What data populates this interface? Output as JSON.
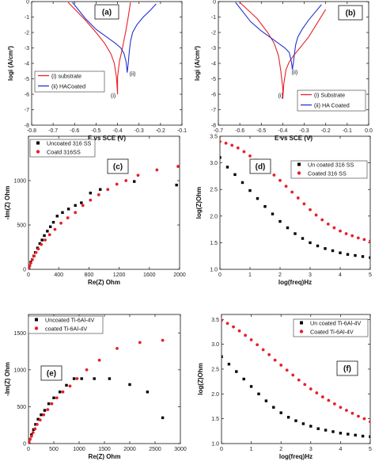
{
  "chart_data": [
    {
      "panel": "(a)",
      "type": "line",
      "xlabel": "E vs SCE (V)",
      "ylabel": "logi (A/cm²)",
      "xlim": [
        -0.8,
        -0.1
      ],
      "ylim": [
        -8,
        0
      ],
      "xticks": [
        "-0.8",
        "-0.7",
        "-0.6",
        "-0.5",
        "-0.4",
        "-0.3",
        "-0.2",
        "-0.1"
      ],
      "yticks": [
        "0",
        "-1",
        "-2",
        "-3",
        "-4",
        "-5",
        "-6",
        "-7",
        "-8"
      ],
      "legend_loc": "lower-left",
      "annotations": [
        {
          "text": "(i)",
          "x": -0.42,
          "y": -6.2
        },
        {
          "text": "(ii)",
          "x": -0.33,
          "y": -4.8
        }
      ],
      "series": [
        {
          "name": "(i) substrate",
          "color": "#e8202a",
          "x": [
            -0.63,
            -0.55,
            -0.5,
            -0.46,
            -0.43,
            -0.415,
            -0.405,
            -0.4,
            -0.4,
            -0.395,
            -0.39,
            -0.38,
            -0.37,
            -0.36,
            -0.35,
            -0.34
          ],
          "y": [
            -0.05,
            -1.2,
            -2.0,
            -2.7,
            -3.4,
            -4.0,
            -4.9,
            -6.0,
            -4.9,
            -4.3,
            -3.8,
            -3.2,
            -2.5,
            -1.8,
            -1.0,
            -0.05
          ]
        },
        {
          "name": "(ii) HACoated",
          "color": "#2233cc",
          "x": [
            -0.61,
            -0.55,
            -0.5,
            -0.45,
            -0.41,
            -0.385,
            -0.37,
            -0.36,
            -0.355,
            -0.35,
            -0.345,
            -0.34,
            -0.33,
            -0.31,
            -0.28,
            -0.25,
            -0.22
          ],
          "y": [
            -0.05,
            -1.1,
            -1.8,
            -2.3,
            -2.7,
            -3.0,
            -3.35,
            -3.9,
            -4.6,
            -4.0,
            -3.2,
            -2.6,
            -2.0,
            -1.5,
            -1.0,
            -0.6,
            -0.15
          ]
        }
      ]
    },
    {
      "panel": "(b)",
      "type": "line",
      "xlabel": "E vs SCE (V)",
      "ylabel": "logi (A/cm²)",
      "xlim": [
        -0.7,
        0.0
      ],
      "ylim": [
        -8,
        0
      ],
      "xticks": [
        "-0.7",
        "-0.6",
        "-0.5",
        "-0.4",
        "-0.3",
        "-0.2",
        "-0.1",
        "0.0"
      ],
      "yticks": [
        "0",
        "-1",
        "-2",
        "-3",
        "-4",
        "-5",
        "-6",
        "-7",
        "-8"
      ],
      "legend_loc": "lower-right",
      "annotations": [
        {
          "text": "(i)",
          "x": -0.41,
          "y": -6.2
        },
        {
          "text": "(ii)",
          "x": -0.345,
          "y": -4.7
        }
      ],
      "series": [
        {
          "name": "(i) Substrate",
          "color": "#e8202a",
          "x": [
            -0.6,
            -0.52,
            -0.47,
            -0.44,
            -0.42,
            -0.41,
            -0.4,
            -0.4,
            -0.395,
            -0.385,
            -0.37,
            -0.35,
            -0.32,
            -0.28,
            -0.24,
            -0.2
          ],
          "y": [
            -0.05,
            -1.1,
            -2.0,
            -2.7,
            -3.5,
            -4.4,
            -5.6,
            -6.3,
            -5.3,
            -4.4,
            -3.9,
            -3.5,
            -3.0,
            -2.3,
            -1.4,
            -0.5
          ]
        },
        {
          "name": "(ii) HA Coated",
          "color": "#2233cc",
          "x": [
            -0.62,
            -0.55,
            -0.5,
            -0.45,
            -0.42,
            -0.39,
            -0.37,
            -0.36,
            -0.355,
            -0.35,
            -0.345,
            -0.34,
            -0.33,
            -0.31,
            -0.28,
            -0.25,
            -0.22
          ],
          "y": [
            -0.05,
            -1.3,
            -1.9,
            -2.4,
            -2.7,
            -3.0,
            -3.3,
            -3.9,
            -4.4,
            -3.9,
            -3.3,
            -2.8,
            -2.3,
            -1.8,
            -1.2,
            -0.7,
            -0.2
          ]
        }
      ]
    },
    {
      "panel": "(c)",
      "type": "scatter",
      "xlabel": "Re(Z) Ohm",
      "ylabel": "-Im(Z) Ohm",
      "xlim": [
        0,
        2000
      ],
      "ylim": [
        0,
        1500
      ],
      "xticks": [
        "0",
        "400",
        "800",
        "1200",
        "1600",
        "2000"
      ],
      "yticks": [
        "0",
        "500",
        "1000"
      ],
      "legend_loc": "top-left",
      "series": [
        {
          "name": "Uncoated 316 SS",
          "color": "#000000",
          "marker": "square",
          "x": [
            5,
            15,
            30,
            50,
            70,
            90,
            120,
            150,
            180,
            210,
            250,
            290,
            330,
            380,
            450,
            530,
            620,
            700,
            820,
            950,
            1400,
            1960
          ],
          "y": [
            10,
            40,
            80,
            110,
            150,
            190,
            240,
            290,
            330,
            380,
            430,
            480,
            530,
            600,
            640,
            680,
            720,
            750,
            860,
            900,
            990,
            950
          ]
        },
        {
          "name": "Coatd 316SS",
          "color": "#e8202a",
          "marker": "circle",
          "x": [
            5,
            15,
            30,
            50,
            75,
            100,
            130,
            170,
            220,
            280,
            350,
            430,
            520,
            620,
            720,
            820,
            930,
            1050,
            1170,
            1290,
            1450,
            1700,
            1980
          ],
          "y": [
            10,
            40,
            70,
            110,
            150,
            190,
            230,
            280,
            330,
            390,
            450,
            520,
            580,
            640,
            720,
            780,
            840,
            900,
            960,
            1000,
            1060,
            1120,
            1160
          ]
        }
      ]
    },
    {
      "panel": "(d)",
      "type": "scatter",
      "xlabel": "log(freq)Hz",
      "ylabel": "log(Z)Ohm",
      "xlim": [
        0,
        5
      ],
      "ylim": [
        1.0,
        3.5
      ],
      "xticks": [
        "0",
        "1",
        "2",
        "3",
        "4",
        "5"
      ],
      "yticks": [
        "1.0",
        "1.5",
        "2.0",
        "2.5",
        "3.0",
        "3.5"
      ],
      "legend_loc": "top-right",
      "series": [
        {
          "name": "Un coated 316 SS",
          "color": "#000000",
          "marker": "square",
          "x": [
            0.0,
            0.25,
            0.5,
            0.75,
            1.0,
            1.25,
            1.5,
            1.75,
            2.0,
            2.25,
            2.5,
            2.75,
            3.0,
            3.25,
            3.5,
            3.75,
            4.0,
            4.25,
            4.5,
            4.75,
            5.0
          ],
          "y": [
            3.1,
            2.92,
            2.78,
            2.63,
            2.48,
            2.33,
            2.18,
            2.04,
            1.9,
            1.78,
            1.67,
            1.58,
            1.5,
            1.44,
            1.39,
            1.35,
            1.31,
            1.28,
            1.26,
            1.24,
            1.22
          ]
        },
        {
          "name": "Coated 316 SS",
          "color": "#e8202a",
          "marker": "circle",
          "x": [
            0.0,
            0.2,
            0.4,
            0.6,
            0.8,
            1.0,
            1.2,
            1.4,
            1.6,
            1.8,
            2.0,
            2.2,
            2.4,
            2.6,
            2.8,
            3.0,
            3.2,
            3.4,
            3.6,
            3.8,
            4.0,
            4.2,
            4.4,
            4.6,
            4.8,
            5.0
          ],
          "y": [
            3.4,
            3.37,
            3.33,
            3.28,
            3.21,
            3.13,
            3.05,
            2.96,
            2.87,
            2.77,
            2.67,
            2.56,
            2.45,
            2.34,
            2.23,
            2.12,
            2.02,
            1.93,
            1.85,
            1.78,
            1.72,
            1.67,
            1.63,
            1.59,
            1.56,
            1.53
          ]
        }
      ]
    },
    {
      "panel": "(e)",
      "type": "scatter",
      "xlabel": "Re(Z) Ohm",
      "ylabel": "-Im(Z) Ohm",
      "xlim": [
        0,
        3000
      ],
      "ylim": [
        0,
        1750
      ],
      "xticks": [
        "0",
        "500",
        "1000",
        "1500",
        "2000",
        "2500",
        "3000"
      ],
      "yticks": [
        "0",
        "500",
        "1000",
        "1500"
      ],
      "legend_loc": "top-left",
      "series": [
        {
          "name": "Uncoated Ti-6Al-4V",
          "color": "#000000",
          "marker": "square",
          "x": [
            10,
            30,
            60,
            100,
            140,
            190,
            250,
            320,
            400,
            500,
            620,
            750,
            900,
            1050,
            1300,
            1600,
            2000,
            2350,
            2650
          ],
          "y": [
            20,
            60,
            120,
            190,
            260,
            330,
            390,
            450,
            540,
            620,
            700,
            790,
            880,
            880,
            880,
            880,
            800,
            700,
            350
          ]
        },
        {
          "name": "coated Ti-6Al-4V",
          "color": "#e8202a",
          "marker": "circle",
          "x": [
            10,
            30,
            60,
            90,
            130,
            170,
            230,
            300,
            380,
            460,
            560,
            680,
            820,
            960,
            1150,
            1400,
            1750,
            2200,
            2650
          ],
          "y": [
            20,
            60,
            100,
            150,
            200,
            260,
            320,
            390,
            460,
            540,
            620,
            700,
            780,
            880,
            1000,
            1130,
            1290,
            1370,
            1400
          ]
        }
      ]
    },
    {
      "panel": "(f)",
      "type": "scatter",
      "xlabel": "log(freq)Hz",
      "ylabel": "log(Z)Ohm",
      "xlim": [
        0,
        5
      ],
      "ylim": [
        1.0,
        3.6
      ],
      "xticks": [
        "0",
        "1",
        "2",
        "3",
        "4",
        "5"
      ],
      "yticks": [
        "1.0",
        "1.5",
        "2.0",
        "2.5",
        "3.0",
        "3.5"
      ],
      "legend_loc": "top-right",
      "series": [
        {
          "name": "Un coated Ti-6Al-4V",
          "color": "#000000",
          "marker": "square",
          "x": [
            0.0,
            0.25,
            0.5,
            0.75,
            1.0,
            1.25,
            1.5,
            1.75,
            2.0,
            2.25,
            2.5,
            2.75,
            3.0,
            3.25,
            3.5,
            3.75,
            4.0,
            4.25,
            4.5,
            4.75,
            5.0
          ],
          "y": [
            2.75,
            2.6,
            2.45,
            2.3,
            2.15,
            2.0,
            1.86,
            1.73,
            1.62,
            1.53,
            1.46,
            1.4,
            1.35,
            1.3,
            1.27,
            1.24,
            1.21,
            1.19,
            1.17,
            1.15,
            1.14
          ]
        },
        {
          "name": "Coated Ti-6Al-4V",
          "color": "#e8202a",
          "marker": "circle",
          "x": [
            0.0,
            0.2,
            0.4,
            0.6,
            0.8,
            1.0,
            1.2,
            1.4,
            1.6,
            1.8,
            2.0,
            2.2,
            2.4,
            2.6,
            2.8,
            3.0,
            3.2,
            3.4,
            3.6,
            3.8,
            4.0,
            4.2,
            4.4,
            4.6,
            4.8,
            5.0
          ],
          "y": [
            3.48,
            3.42,
            3.35,
            3.27,
            3.18,
            3.09,
            2.99,
            2.89,
            2.79,
            2.68,
            2.58,
            2.48,
            2.38,
            2.28,
            2.19,
            2.1,
            2.02,
            1.94,
            1.87,
            1.8,
            1.73,
            1.67,
            1.61,
            1.55,
            1.5,
            1.44
          ]
        }
      ]
    }
  ]
}
